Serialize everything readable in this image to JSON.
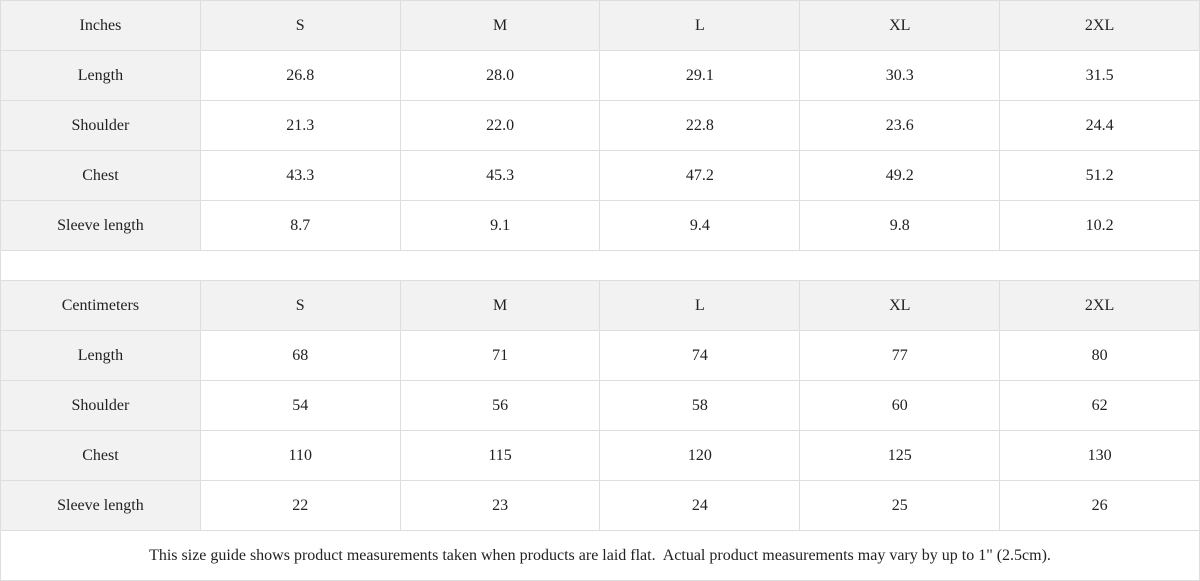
{
  "tables": [
    {
      "unit": "Inches",
      "sizes": [
        "S",
        "M",
        "L",
        "XL",
        "2XL"
      ],
      "rows": [
        {
          "label": "Length",
          "values": [
            "26.8",
            "28.0",
            "29.1",
            "30.3",
            "31.5"
          ]
        },
        {
          "label": "Shoulder",
          "values": [
            "21.3",
            "22.0",
            "22.8",
            "23.6",
            "24.4"
          ]
        },
        {
          "label": "Chest",
          "values": [
            "43.3",
            "45.3",
            "47.2",
            "49.2",
            "51.2"
          ]
        },
        {
          "label": "Sleeve length",
          "values": [
            "8.7",
            "9.1",
            "9.4",
            "9.8",
            "10.2"
          ]
        }
      ]
    },
    {
      "unit": "Centimeters",
      "sizes": [
        "S",
        "M",
        "L",
        "XL",
        "2XL"
      ],
      "rows": [
        {
          "label": "Length",
          "values": [
            "68",
            "71",
            "74",
            "77",
            "80"
          ]
        },
        {
          "label": "Shoulder",
          "values": [
            "54",
            "56",
            "58",
            "60",
            "62"
          ]
        },
        {
          "label": "Chest",
          "values": [
            "110",
            "115",
            "120",
            "125",
            "130"
          ]
        },
        {
          "label": "Sleeve length",
          "values": [
            "22",
            "23",
            "24",
            "25",
            "26"
          ]
        }
      ]
    }
  ],
  "note": "This size guide shows product measurements taken when products are laid flat.  Actual product measurements may vary by up to 1\" (2.5cm)."
}
